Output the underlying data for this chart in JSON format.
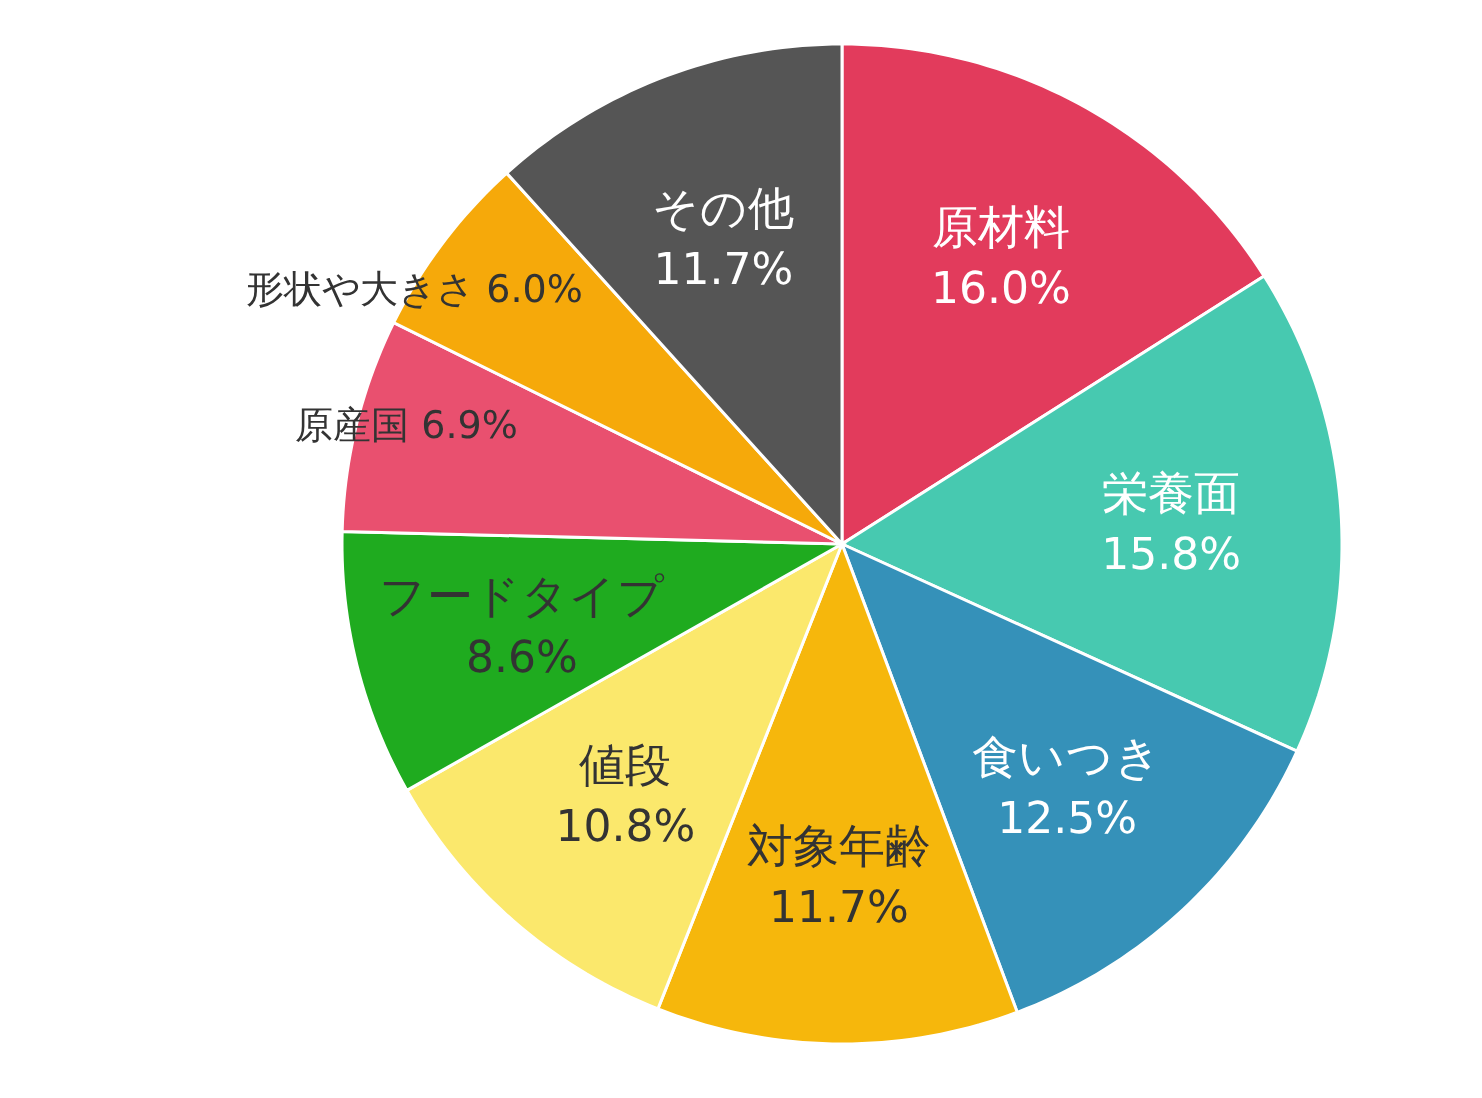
{
  "chart_data": {
    "type": "pie",
    "data_labels": true,
    "categories": [
      "原材料",
      "栄養面",
      "食いつき",
      "対象年齢",
      "値段",
      "フードタイプ",
      "原産国",
      "形状や大きさ",
      "その他"
    ],
    "values": [
      16.0,
      15.8,
      12.5,
      11.7,
      10.8,
      8.6,
      6.9,
      6.0,
      11.7
    ],
    "value_labels": [
      "16.0%",
      "15.8%",
      "12.5%",
      "11.7%",
      "10.8%",
      "8.6%",
      "6.9%",
      "6.0%",
      "11.7%"
    ],
    "colors": [
      "#e23b5c",
      "#47c9b0",
      "#3591b9",
      "#f6b70c",
      "#fbe86c",
      "#1fab1f",
      "#e9506f",
      "#f6a90a",
      "#555555"
    ]
  }
}
